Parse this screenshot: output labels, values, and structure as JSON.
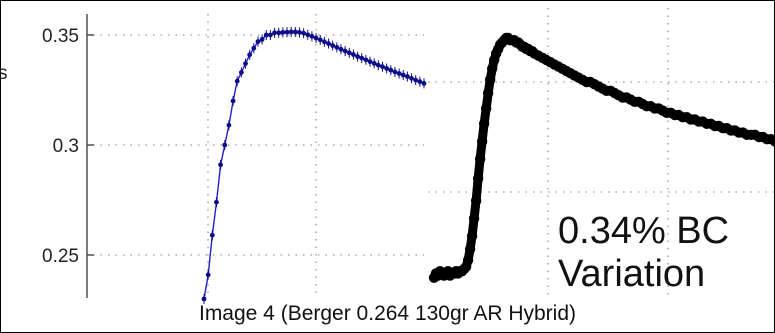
{
  "chart_data": [
    {
      "type": "line",
      "panel": "left",
      "ylim": [
        0.23,
        0.36
      ],
      "y_ticks": [
        "0.35",
        "0.3",
        "0.25"
      ],
      "grid": true,
      "line_color": "#1f1fd1",
      "series": [
        {
          "x": [
            0,
            1,
            2,
            3,
            4,
            5,
            6,
            7,
            8,
            9,
            10,
            11,
            12,
            13,
            14,
            15,
            16,
            17,
            18,
            19,
            20,
            21,
            22,
            23,
            24,
            25,
            26,
            27,
            28,
            29,
            30,
            31,
            32,
            33,
            34,
            35,
            36,
            37,
            38,
            39,
            40,
            41,
            42,
            43,
            44,
            45,
            46,
            47,
            48,
            49,
            50,
            51,
            52,
            53
          ],
          "values": [
            0.23,
            0.241,
            0.259,
            0.274,
            0.291,
            0.3,
            0.309,
            0.32,
            0.329,
            0.333,
            0.337,
            0.341,
            0.344,
            0.347,
            0.348,
            0.35,
            0.35,
            0.351,
            0.351,
            0.3512,
            0.3513,
            0.3514,
            0.3514,
            0.3512,
            0.3508,
            0.3501,
            0.3494,
            0.3486,
            0.3478,
            0.3469,
            0.3461,
            0.3452,
            0.3444,
            0.3435,
            0.3427,
            0.3419,
            0.3411,
            0.3402,
            0.3395,
            0.3387,
            0.3379,
            0.3371,
            0.3363,
            0.3356,
            0.3348,
            0.334,
            0.3332,
            0.3325,
            0.3318,
            0.3311,
            0.3303,
            0.3295,
            0.3288,
            0.328
          ]
        }
      ]
    },
    {
      "type": "scatter",
      "panel": "right",
      "ylim": [
        0.23,
        0.36
      ],
      "grid": true,
      "marker_color": "#000000",
      "series": [
        {
          "x": [
            0,
            2,
            4,
            6,
            8,
            10,
            12,
            14,
            16,
            18,
            20,
            22,
            24,
            26,
            28,
            30,
            32,
            34,
            36,
            38,
            40,
            42,
            44,
            46,
            48,
            50,
            52,
            54,
            56,
            58,
            60,
            62,
            64,
            66,
            68,
            70,
            72,
            74,
            76,
            78,
            80,
            82,
            84,
            86,
            88,
            90,
            92,
            94,
            96,
            98,
            100,
            104,
            108,
            112,
            116,
            120,
            124,
            128,
            132,
            136,
            140,
            144,
            148,
            152,
            156,
            160,
            164,
            168,
            172,
            176,
            180,
            184,
            188,
            192,
            196,
            200,
            204,
            208,
            212,
            216,
            220,
            224,
            228,
            232,
            236,
            240,
            244,
            248,
            252,
            256,
            260,
            264,
            268,
            272,
            276,
            280,
            284,
            288,
            292,
            296,
            300,
            304,
            308,
            312,
            316,
            320,
            324,
            328,
            332,
            336,
            340
          ],
          "values": [
            0.241,
            0.243,
            0.242,
            0.244,
            0.243,
            0.242,
            0.243,
            0.244,
            0.242,
            0.243,
            0.243,
            0.244,
            0.243,
            0.244,
            0.244,
            0.245,
            0.246,
            0.249,
            0.254,
            0.26,
            0.268,
            0.276,
            0.286,
            0.295,
            0.303,
            0.311,
            0.318,
            0.325,
            0.331,
            0.336,
            0.34,
            0.343,
            0.345,
            0.347,
            0.348,
            0.349,
            0.35,
            0.35,
            0.349,
            0.349,
            0.349,
            0.348,
            0.348,
            0.347,
            0.346,
            0.346,
            0.345,
            0.345,
            0.344,
            0.344,
            0.343,
            0.342,
            0.341,
            0.34,
            0.339,
            0.338,
            0.337,
            0.336,
            0.335,
            0.334,
            0.333,
            0.332,
            0.331,
            0.33,
            0.33,
            0.329,
            0.328,
            0.327,
            0.326,
            0.326,
            0.325,
            0.324,
            0.323,
            0.323,
            0.322,
            0.321,
            0.321,
            0.32,
            0.319,
            0.319,
            0.318,
            0.318,
            0.317,
            0.316,
            0.316,
            0.315,
            0.315,
            0.314,
            0.314,
            0.313,
            0.313,
            0.312,
            0.312,
            0.311,
            0.311,
            0.31,
            0.31,
            0.309,
            0.309,
            0.308,
            0.308,
            0.307,
            0.307,
            0.306,
            0.306,
            0.306,
            0.305,
            0.305,
            0.304,
            0.304,
            0.303
          ]
        }
      ]
    }
  ],
  "annotation": {
    "line1": "0.34% BC",
    "line2": "Variation"
  },
  "caption": "Image 4 (Berger 0.264 130gr AR Hybrid)",
  "edge_text": "s"
}
